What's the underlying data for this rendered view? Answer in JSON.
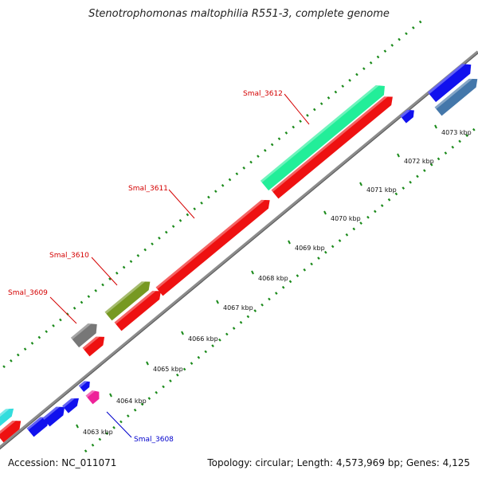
{
  "title": "Stenotrophomonas maltophilia R551-3, complete genome",
  "footer": {
    "accession": "Accession: NC_011071",
    "summary": "Topology: circular; Length: 4,573,969 bp; Genes: 4,125"
  },
  "colors": {
    "backbone": "#8c8c8c",
    "tick_dots": "#1a8a1a",
    "label_red": "#d40000",
    "label_blue": "#0000cc"
  },
  "scale_labels": [
    "4063 kbp",
    "4064 kbp",
    "4065 kbp",
    "4066 kbp",
    "4067 kbp",
    "4068 kbp",
    "4069 kbp",
    "4070 kbp",
    "4071 kbp",
    "4072 kbp",
    "4073 kbp"
  ],
  "gene_labels": [
    {
      "text": "Smal_3612",
      "color": "red"
    },
    {
      "text": "Smal_3611",
      "color": "red"
    },
    {
      "text": "Smal_3610",
      "color": "red"
    },
    {
      "text": "Smal_3609",
      "color": "red"
    },
    {
      "text": "Smal_3608",
      "color": "blue"
    }
  ],
  "features": [
    {
      "name": "cyan-gene-edge",
      "color": "#33dddd"
    },
    {
      "name": "red-gene-edge",
      "color": "#ee1111"
    },
    {
      "name": "blue-gene-1",
      "color": "#1111ee"
    },
    {
      "name": "blue-gene-2",
      "color": "#1111ee"
    },
    {
      "name": "blue-gene-3",
      "color": "#1111ee"
    },
    {
      "name": "blue-gene-4",
      "color": "#1111ee"
    },
    {
      "name": "magenta-gene",
      "color": "#ee2299"
    },
    {
      "name": "smal-3609-red",
      "color": "#ee1111"
    },
    {
      "name": "smal-3609-gray",
      "color": "#777777"
    },
    {
      "name": "smal-3610-olive",
      "color": "#779922"
    },
    {
      "name": "smal-3610-red",
      "color": "#ee1111"
    },
    {
      "name": "smal-3611-red",
      "color": "#ee1111"
    },
    {
      "name": "smal-3612-red",
      "color": "#ee1111"
    },
    {
      "name": "smal-3612-mint",
      "color": "#22ee99"
    },
    {
      "name": "blue-gene-5",
      "color": "#1111ee"
    },
    {
      "name": "blue-gene-6",
      "color": "#1111ee"
    },
    {
      "name": "steelblue-gene",
      "color": "#4477aa"
    }
  ]
}
